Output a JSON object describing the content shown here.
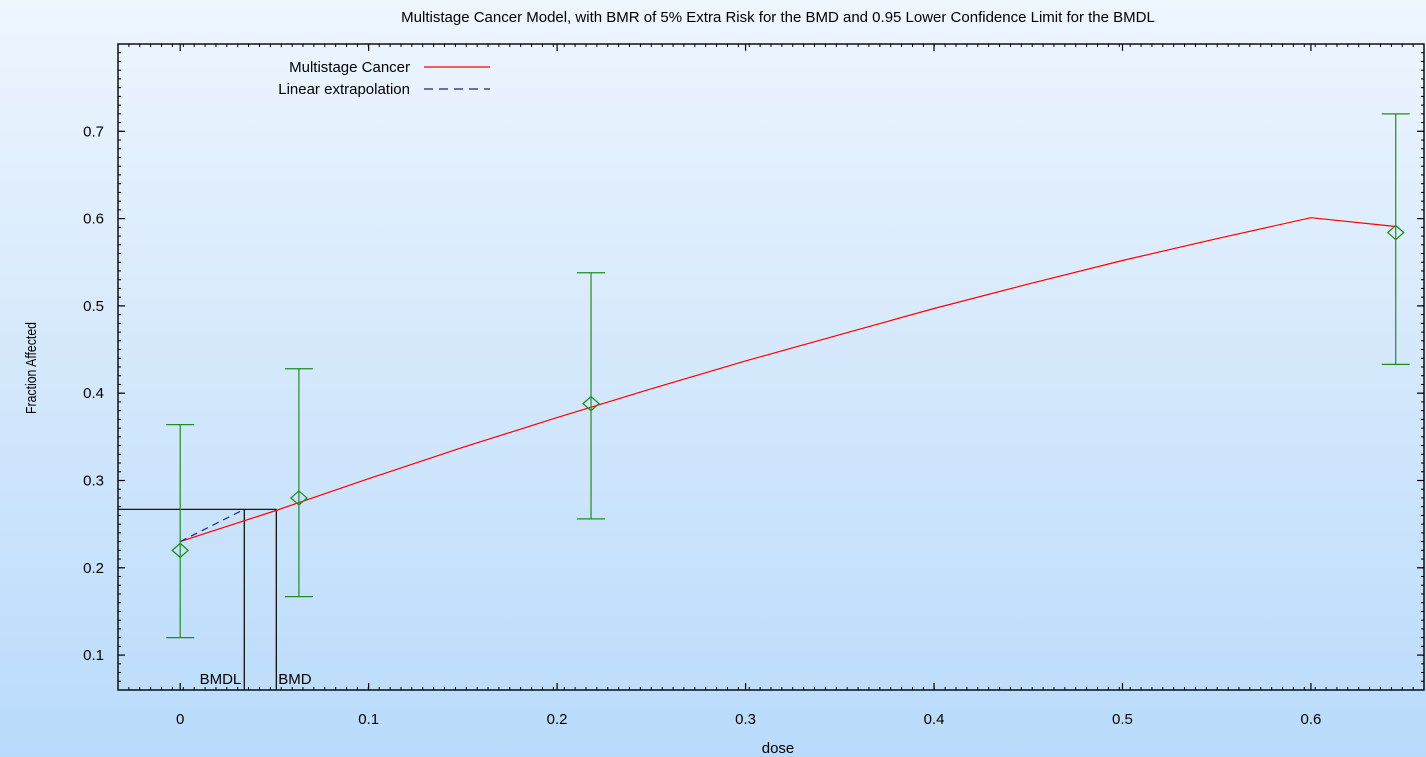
{
  "chart_data": {
    "type": "scatter",
    "title": "Multistage Cancer Model, with BMR of 5% Extra Risk for the BMD and 0.95 Lower Confidence Limit for the BMDL",
    "xlabel": "dose",
    "ylabel": "Fraction Affected",
    "xlim": [
      -0.033,
      0.66
    ],
    "ylim": [
      0.06,
      0.8
    ],
    "xticks": [
      0,
      0.1,
      0.2,
      0.3,
      0.4,
      0.5,
      0.6
    ],
    "yticks": [
      0.1,
      0.2,
      0.3,
      0.4,
      0.5,
      0.6,
      0.7
    ],
    "xtick_labels": [
      "0",
      "0.1",
      "0.2",
      "0.3",
      "0.4",
      "0.5",
      "0.6"
    ],
    "ytick_labels": [
      "0.1",
      "0.2",
      "0.3",
      "0.4",
      "0.5",
      "0.6",
      "0.7"
    ],
    "grid": false,
    "legend_position": "top-left",
    "observed": {
      "dose": [
        0,
        0.063,
        0.218,
        0.645
      ],
      "fraction": [
        0.22,
        0.28,
        0.388,
        0.584
      ],
      "lower": [
        0.12,
        0.167,
        0.256,
        0.433
      ],
      "upper": [
        0.364,
        0.428,
        0.538,
        0.72
      ],
      "color": "#228b22"
    },
    "series": [
      {
        "name": "Multistage Cancer",
        "style": "solid",
        "color": "#ff0000",
        "x": [
          0,
          0.05,
          0.1,
          0.15,
          0.2,
          0.25,
          0.3,
          0.35,
          0.4,
          0.45,
          0.5,
          0.55,
          0.6,
          0.645
        ],
        "y": [
          0.23,
          0.265,
          0.302,
          0.338,
          0.372,
          0.405,
          0.437,
          0.467,
          0.497,
          0.525,
          0.552,
          0.577,
          0.601,
          0.591
        ]
      },
      {
        "name": "Linear extrapolation",
        "style": "dashed",
        "color": "#1a237e",
        "x": [
          0,
          0.034
        ],
        "y": [
          0.23,
          0.267
        ]
      }
    ],
    "bmr_level": 0.267,
    "bmd": 0.051,
    "bmdl": 0.034,
    "annotations": {
      "bmdl_label": "BMDL",
      "bmd_label": "BMD"
    }
  }
}
